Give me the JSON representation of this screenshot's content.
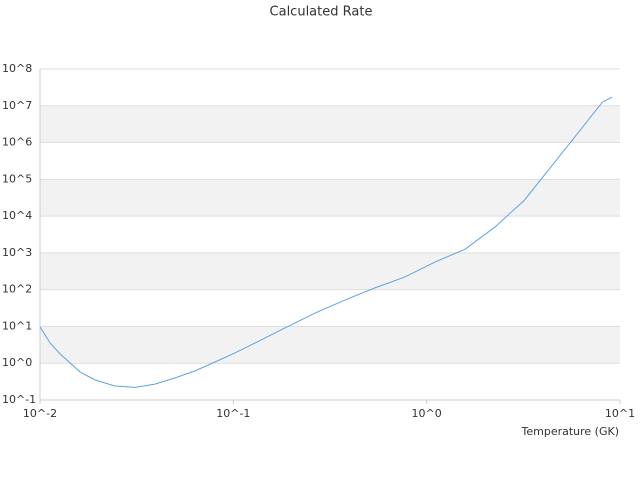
{
  "chart_data": {
    "type": "line",
    "title": "Calculated Rate",
    "x_label": "Temperature (GK)",
    "xlog": true,
    "ylog": true,
    "grid": "bands",
    "band_color": "#f2f2f2",
    "xlim": [
      0.01,
      10
    ],
    "ylim": [
      0.1,
      100000000
    ],
    "xticks": [
      {
        "value": 0.01,
        "label": "10^-2"
      },
      {
        "value": 0.1,
        "label": "10^-1"
      },
      {
        "value": 1,
        "label": "10^0"
      },
      {
        "value": 10,
        "label": "10^1"
      }
    ],
    "yticks": [
      {
        "value": 0.1,
        "label": "10^-1"
      },
      {
        "value": 1,
        "label": "10^0"
      },
      {
        "value": 10,
        "label": "10^1"
      },
      {
        "value": 100,
        "label": "10^2"
      },
      {
        "value": 1000,
        "label": "10^3"
      },
      {
        "value": 10000,
        "label": "10^4"
      },
      {
        "value": 100000,
        "label": "10^5"
      },
      {
        "value": 1000000,
        "label": "10^6"
      },
      {
        "value": 10000000,
        "label": "10^7"
      },
      {
        "value": 100000000,
        "label": "10^8"
      }
    ],
    "x": [
      0.01,
      0.0113,
      0.0127,
      0.0161,
      0.0193,
      0.0244,
      0.031,
      0.0393,
      0.05,
      0.0634,
      0.08,
      0.102,
      0.129,
      0.185,
      0.264,
      0.38,
      0.54,
      0.77,
      1.1,
      1.58,
      2.25,
      3.2,
      4.6,
      6.6,
      8.1,
      9.1
    ],
    "series": [
      {
        "color": "#5ca3e6",
        "values": [
          9.7,
          3.5,
          1.8,
          0.58,
          0.35,
          0.24,
          0.22,
          0.27,
          0.4,
          0.62,
          1.07,
          1.9,
          3.5,
          9.1,
          23,
          53,
          112,
          220,
          560,
          1260,
          5000,
          27000,
          295000,
          3200000,
          12500000,
          17300000
        ]
      }
    ]
  }
}
